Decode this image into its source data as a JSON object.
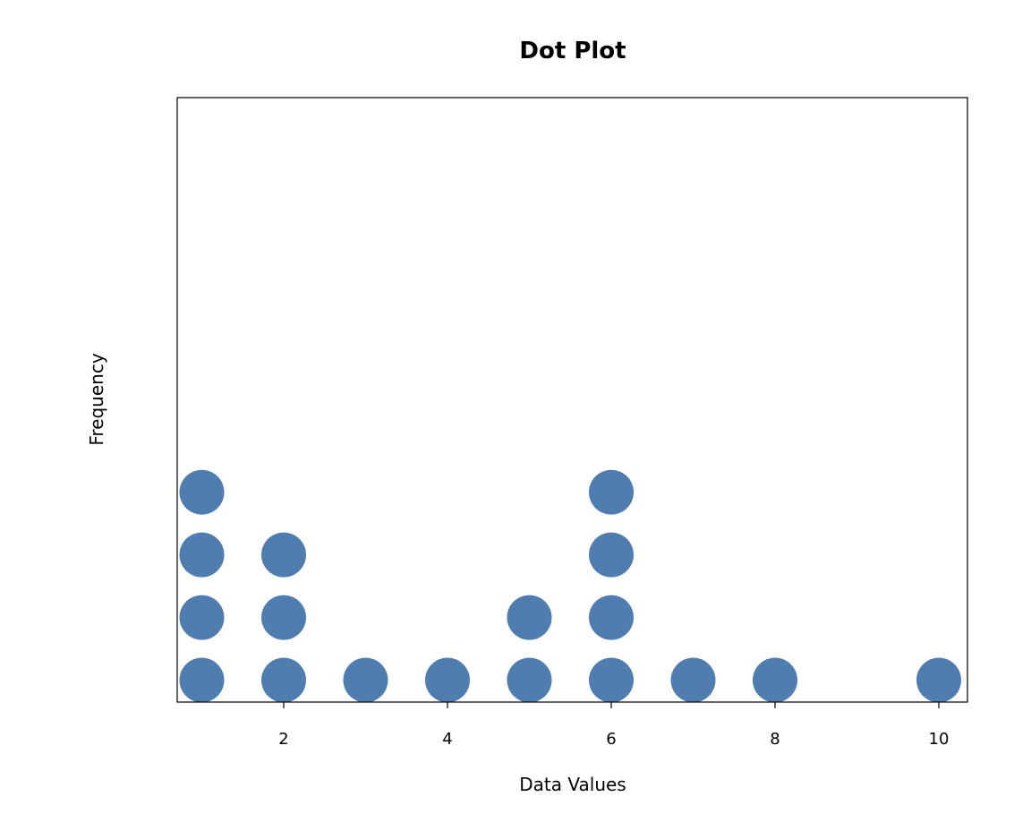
{
  "chart_data": {
    "type": "dot",
    "title": "Dot Plot",
    "xlabel": "Data Values",
    "ylabel": "Frequency",
    "x": [
      1,
      2,
      3,
      4,
      5,
      6,
      7,
      8,
      10
    ],
    "counts": [
      4,
      3,
      1,
      1,
      2,
      4,
      1,
      1,
      1
    ],
    "xlim": [
      0.7,
      10.35
    ],
    "ylim": [
      0.65,
      10.3
    ],
    "xticks": [
      "2",
      "4",
      "6",
      "8",
      "10"
    ],
    "yticks_visible": false,
    "grid": false,
    "dot_color": "#4f7db0"
  }
}
